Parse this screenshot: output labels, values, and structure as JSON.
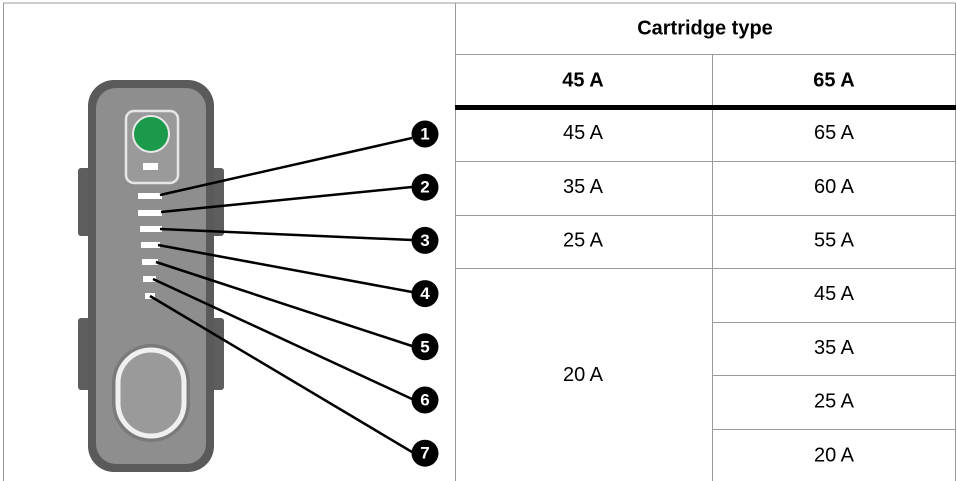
{
  "table": {
    "header": {
      "title": "Cartridge type",
      "columns": [
        "45 A",
        "65 A"
      ]
    },
    "rows": [
      {
        "left": "45 A",
        "right": "65 A"
      },
      {
        "left": "35 A",
        "right": "60 A"
      },
      {
        "left": "25 A",
        "right": "55 A"
      }
    ],
    "merged": {
      "left": "20 A",
      "right": [
        "45 A",
        "35 A",
        "25 A",
        "20 A"
      ]
    }
  },
  "callouts": [
    "1",
    "2",
    "3",
    "4",
    "5",
    "6",
    "7"
  ]
}
